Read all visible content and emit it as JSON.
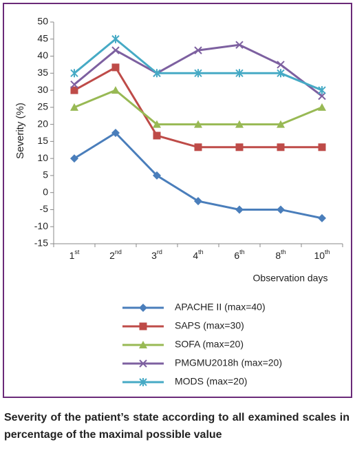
{
  "chart_data": {
    "type": "line",
    "y_label": "Severity (%)",
    "x_label": "Observation days",
    "categories": [
      "1st",
      "2nd",
      "3rd",
      "4th",
      "6th",
      "8th",
      "10th"
    ],
    "series": [
      {
        "name": "APACHE II (max=40)",
        "color": "#4a7ebb",
        "marker": "diamond",
        "values": [
          10,
          17.5,
          5,
          -2.5,
          -5,
          -5,
          -7.5
        ]
      },
      {
        "name": "SAPS (max=30)",
        "color": "#be4b48",
        "marker": "square",
        "values": [
          30,
          36.7,
          16.7,
          13.3,
          13.3,
          13.3,
          13.3
        ]
      },
      {
        "name": "SOFA (max=20)",
        "color": "#98b954",
        "marker": "triangle",
        "values": [
          25,
          30,
          20,
          20,
          20,
          20,
          25
        ]
      },
      {
        "name": "PMGMU2018h (max=20)",
        "color": "#7d60a0",
        "marker": "x",
        "values": [
          31.7,
          41.7,
          35,
          41.7,
          43.3,
          37.5,
          28.3
        ]
      },
      {
        "name": "MODS (max=20)",
        "color": "#46aac5",
        "marker": "star",
        "values": [
          35,
          45,
          35,
          35,
          35,
          35,
          30
        ]
      }
    ],
    "ylim": [
      -15,
      50
    ],
    "yticks": [
      -15,
      -10,
      -5,
      0,
      5,
      10,
      15,
      20,
      25,
      30,
      35,
      40,
      45,
      50
    ],
    "grid": false,
    "caption": "Severity of the patient’s state according to all examined scales in percentage of the maximal possible value"
  }
}
